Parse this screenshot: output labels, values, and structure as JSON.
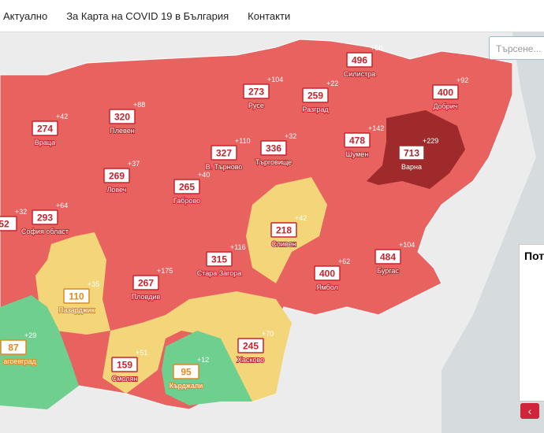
{
  "nav": {
    "items": [
      "Актуално",
      "За Карта на COVID 19 в България",
      "Контакти"
    ]
  },
  "search": {
    "placeholder": "Търсене..."
  },
  "panel": {
    "title": "Пот"
  },
  "regions": [
    {
      "name": "Силистра",
      "value": 496,
      "change": "+60",
      "color": "#c8232c"
    },
    {
      "name": "Русе",
      "value": 273,
      "change": "+104",
      "color": "#c8232c"
    },
    {
      "name": "Разград",
      "value": 259,
      "change": "+22",
      "color": "#c8232c"
    },
    {
      "name": "Добрич",
      "value": 400,
      "change": "+92",
      "color": "#c8232c"
    },
    {
      "name": "Плевен",
      "value": 320,
      "change": "+88",
      "color": "#c8232c"
    },
    {
      "name": "Враца",
      "value": 274,
      "change": "+42",
      "color": "#c8232c"
    },
    {
      "name": "Шумен",
      "value": 478,
      "change": "+142",
      "color": "#c8232c"
    },
    {
      "name": "Варна",
      "value": 713,
      "change": "+229",
      "color": "#9e2a2b"
    },
    {
      "name": "В. Търново",
      "value": 327,
      "change": "+110",
      "color": "#c8232c"
    },
    {
      "name": "Търговище",
      "value": 336,
      "change": "+32",
      "color": "#c8232c"
    },
    {
      "name": "Ловеч",
      "value": 269,
      "change": "+37",
      "color": "#c8232c"
    },
    {
      "name": "Габрово",
      "value": 265,
      "change": "+40",
      "color": "#c8232c"
    },
    {
      "name": "София област",
      "value": 293,
      "change": "+64",
      "color": "#c8232c"
    },
    {
      "value": 52,
      "change": "+32",
      "color": "#c8232c"
    },
    {
      "name": "Сливен",
      "value": 218,
      "change": "+42",
      "color": "#c8232c"
    },
    {
      "name": "Стара Загора",
      "value": 315,
      "change": "+116",
      "color": "#c8232c"
    },
    {
      "name": "Ямбол",
      "value": 400,
      "change": "+62",
      "color": "#c8232c"
    },
    {
      "name": "Бургас",
      "value": 484,
      "change": "+104",
      "color": "#c8232c"
    },
    {
      "name": "Пазарджик",
      "value": 110,
      "change": "+35",
      "color": "#e08a1e"
    },
    {
      "name": "Пловдив",
      "value": 267,
      "change": "+175",
      "color": "#c8232c"
    },
    {
      "name": "Смолян",
      "value": 159,
      "change": "+51",
      "color": "#c8232c"
    },
    {
      "name": "Хасково",
      "value": 245,
      "change": "+70",
      "color": "#c8232c"
    },
    {
      "name": "Кърджали",
      "value": 95,
      "change": "+12",
      "color": "#e08a1e"
    },
    {
      "name": "агоевград",
      "value": 87,
      "change": "+29",
      "color": "#e08a1e"
    }
  ]
}
